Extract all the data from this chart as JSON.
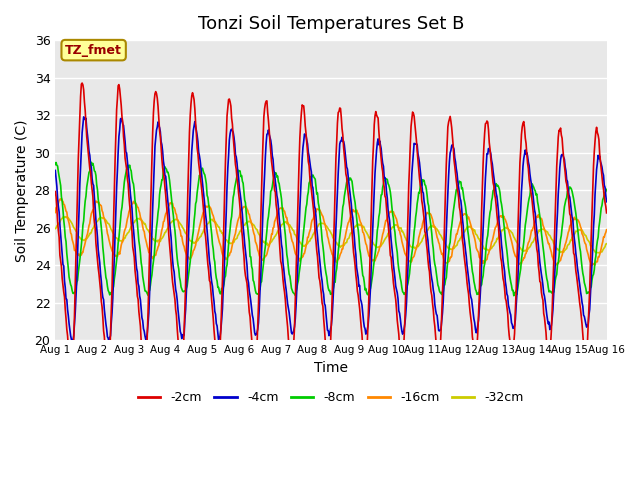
{
  "title": "Tonzi Soil Temperatures Set B",
  "xlabel": "Time",
  "ylabel": "Soil Temperature (C)",
  "ylim": [
    20,
    36
  ],
  "yticks": [
    20,
    22,
    24,
    26,
    28,
    30,
    32,
    34,
    36
  ],
  "xtick_labels": [
    "Aug 1",
    "Aug 2",
    "Aug 3",
    "Aug 4",
    "Aug 5",
    "Aug 6",
    "Aug 7",
    "Aug 8",
    "Aug 9",
    "Aug 10",
    "Aug 11",
    "Aug 12",
    "Aug 13",
    "Aug 14",
    "Aug 15",
    "Aug 16"
  ],
  "legend_labels": [
    "-2cm",
    "-4cm",
    "-8cm",
    "-16cm",
    "-32cm"
  ],
  "legend_colors": [
    "#dd0000",
    "#0000cc",
    "#00cc00",
    "#ff8800",
    "#cccc00"
  ],
  "annotation_text": "TZ_fmet",
  "annotation_color": "#990000",
  "annotation_bg": "#ffff99",
  "annotation_border": "#aa8800",
  "background_color": "#e8e8e8",
  "grid_color": "#ffffff",
  "title_fontsize": 13,
  "axis_fontsize": 10
}
